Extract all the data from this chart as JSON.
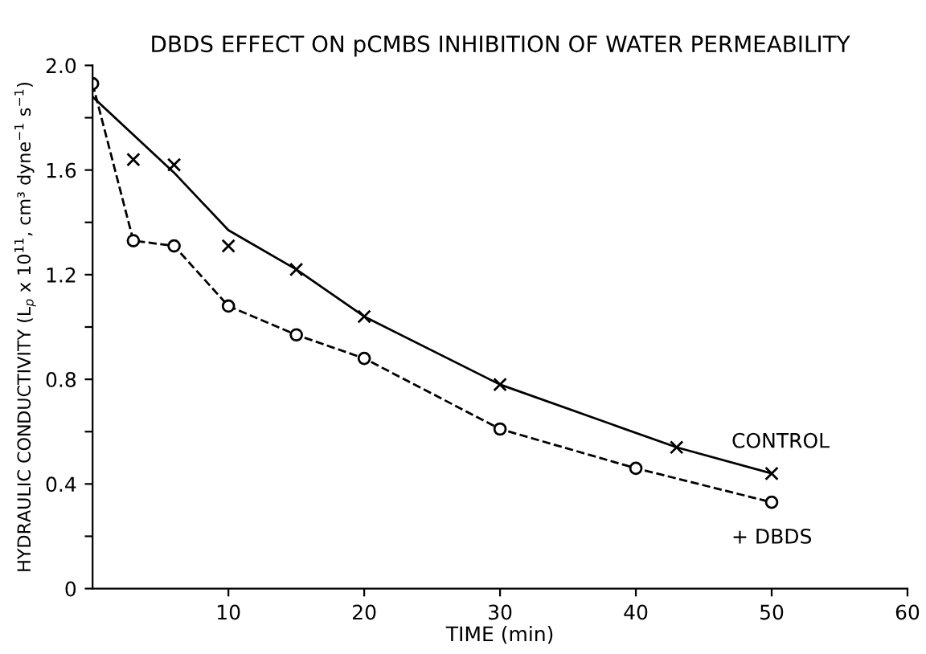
{
  "chart_data": {
    "type": "line",
    "title": "DBDS EFFECT ON pCMBS INHIBITION OF WATER PERMEABILITY",
    "xlabel": "TIME (min)",
    "ylabel": "HYDRAULIC CONDUCTIVITY (L$_{p}$ x 10$^{11}$, cm³ dyne$^{−1}$ s$^{−1}$)",
    "xlim": [
      0,
      60
    ],
    "xticks": [
      10,
      20,
      30,
      40,
      50,
      60
    ],
    "ylim": [
      0,
      2.0
    ],
    "yticks": [
      0,
      {
        "value": 0.2,
        "label": null
      },
      0.4,
      {
        "value": 0.6,
        "label": null
      },
      0.8,
      {
        "value": 1.0,
        "label": null
      },
      1.2,
      {
        "value": 1.4,
        "label": null
      },
      1.6,
      {
        "value": 1.8,
        "label": null
      },
      {
        "value": 2.0,
        "label": "2.0"
      }
    ],
    "grid": false,
    "legend": false,
    "series": [
      {
        "name": "CONTROL",
        "type": "scatter",
        "marker": "cross",
        "color": "#000000",
        "x": [
          3,
          6,
          10,
          15,
          20,
          30,
          43,
          50
        ],
        "values": [
          1.64,
          1.62,
          1.31,
          1.22,
          1.04,
          0.78,
          0.54,
          0.44
        ]
      },
      {
        "marker": "none",
        "line_style": "solid",
        "color": "#000000",
        "x": [
          0,
          6,
          10,
          15,
          20,
          30,
          43,
          50
        ],
        "values": [
          1.88,
          1.59,
          1.37,
          1.22,
          1.04,
          0.78,
          0.54,
          0.44
        ]
      },
      {
        "name": "+ DBDS",
        "marker": "circle",
        "line_style": "dashed",
        "color": "#000000",
        "x": [
          0,
          3,
          6,
          10,
          15,
          20,
          30,
          40,
          50
        ],
        "values": [
          1.93,
          1.33,
          1.31,
          1.08,
          0.97,
          0.88,
          0.61,
          0.46,
          0.33
        ]
      }
    ]
  }
}
